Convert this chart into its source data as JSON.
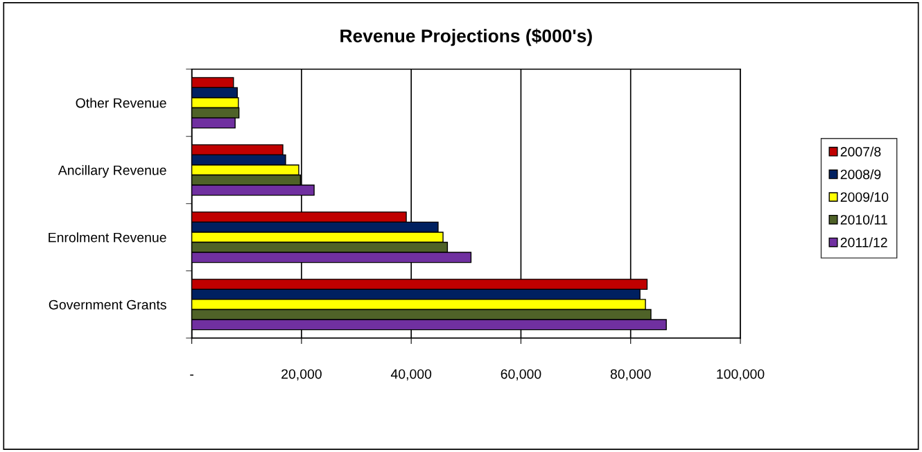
{
  "chart_data": {
    "type": "bar",
    "orientation": "horizontal",
    "title": "Revenue Projections ($000's)",
    "categories": [
      "Other Revenue",
      "Ancillary Revenue",
      "Enrolment Revenue",
      "Government Grants"
    ],
    "series": [
      {
        "name": "2007/8",
        "color": "#c00000",
        "values": [
          7600,
          16600,
          39100,
          83000
        ]
      },
      {
        "name": "2008/9",
        "color": "#002060",
        "values": [
          8300,
          17100,
          44900,
          81700
        ]
      },
      {
        "name": "2009/10",
        "color": "#ffff00",
        "values": [
          8500,
          19500,
          45800,
          82700
        ]
      },
      {
        "name": "2010/11",
        "color": "#4f6228",
        "values": [
          8600,
          19800,
          46600,
          83700
        ]
      },
      {
        "name": "2011/12",
        "color": "#7030a0",
        "values": [
          7900,
          22300,
          50900,
          86500
        ]
      }
    ],
    "xlim": [
      0,
      100000
    ],
    "xticks": [
      {
        "value": 0,
        "label": "-"
      },
      {
        "value": 20000,
        "label": "20,000"
      },
      {
        "value": 40000,
        "label": "40,000"
      },
      {
        "value": 60000,
        "label": "60,000"
      },
      {
        "value": 80000,
        "label": "80,000"
      },
      {
        "value": 100000,
        "label": "100,000"
      }
    ],
    "grid": "x",
    "legend": "right"
  }
}
